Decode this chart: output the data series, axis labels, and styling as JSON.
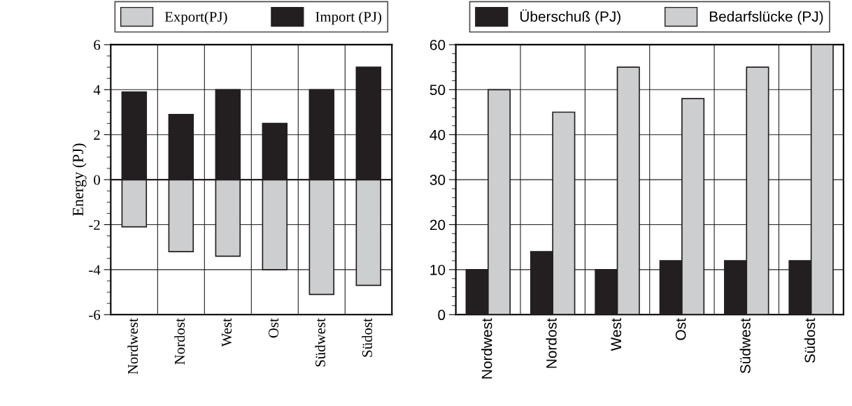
{
  "chart_data": [
    {
      "type": "bar",
      "ylabel": "Energy (PJ)",
      "categories": [
        "Nordwest",
        "Nordost",
        "West",
        "Ost",
        "Südwest",
        "Südost"
      ],
      "stacked": true,
      "series": [
        {
          "name": "Export(PJ)",
          "color": "#cdcecf",
          "values": [
            -2.1,
            -3.2,
            -3.4,
            -4.0,
            -5.1,
            -4.7
          ]
        },
        {
          "name": "Import (PJ)",
          "color": "#231f20",
          "values": [
            3.9,
            2.9,
            4.0,
            2.5,
            4.0,
            5.0
          ]
        }
      ],
      "ylim": [
        -6,
        6
      ],
      "yticks": [
        -6,
        -4,
        -2,
        0,
        2,
        4,
        6
      ],
      "grid": true,
      "legend": "top"
    },
    {
      "type": "bar",
      "categories": [
        "Nordwest",
        "Nordost",
        "West",
        "Ost",
        "Südwest",
        "Südost"
      ],
      "series": [
        {
          "name": "Überschuß (PJ)",
          "color": "#231f20",
          "values": [
            10,
            14,
            10,
            12,
            12,
            12
          ]
        },
        {
          "name": "Bedarfslücke (PJ)",
          "color": "#cdcecf",
          "values": [
            50,
            45,
            55,
            48,
            55,
            60
          ]
        }
      ],
      "ylim": [
        0,
        60
      ],
      "yticks": [
        0,
        10,
        20,
        30,
        40,
        50,
        60
      ],
      "grid": true,
      "legend": "top"
    }
  ]
}
